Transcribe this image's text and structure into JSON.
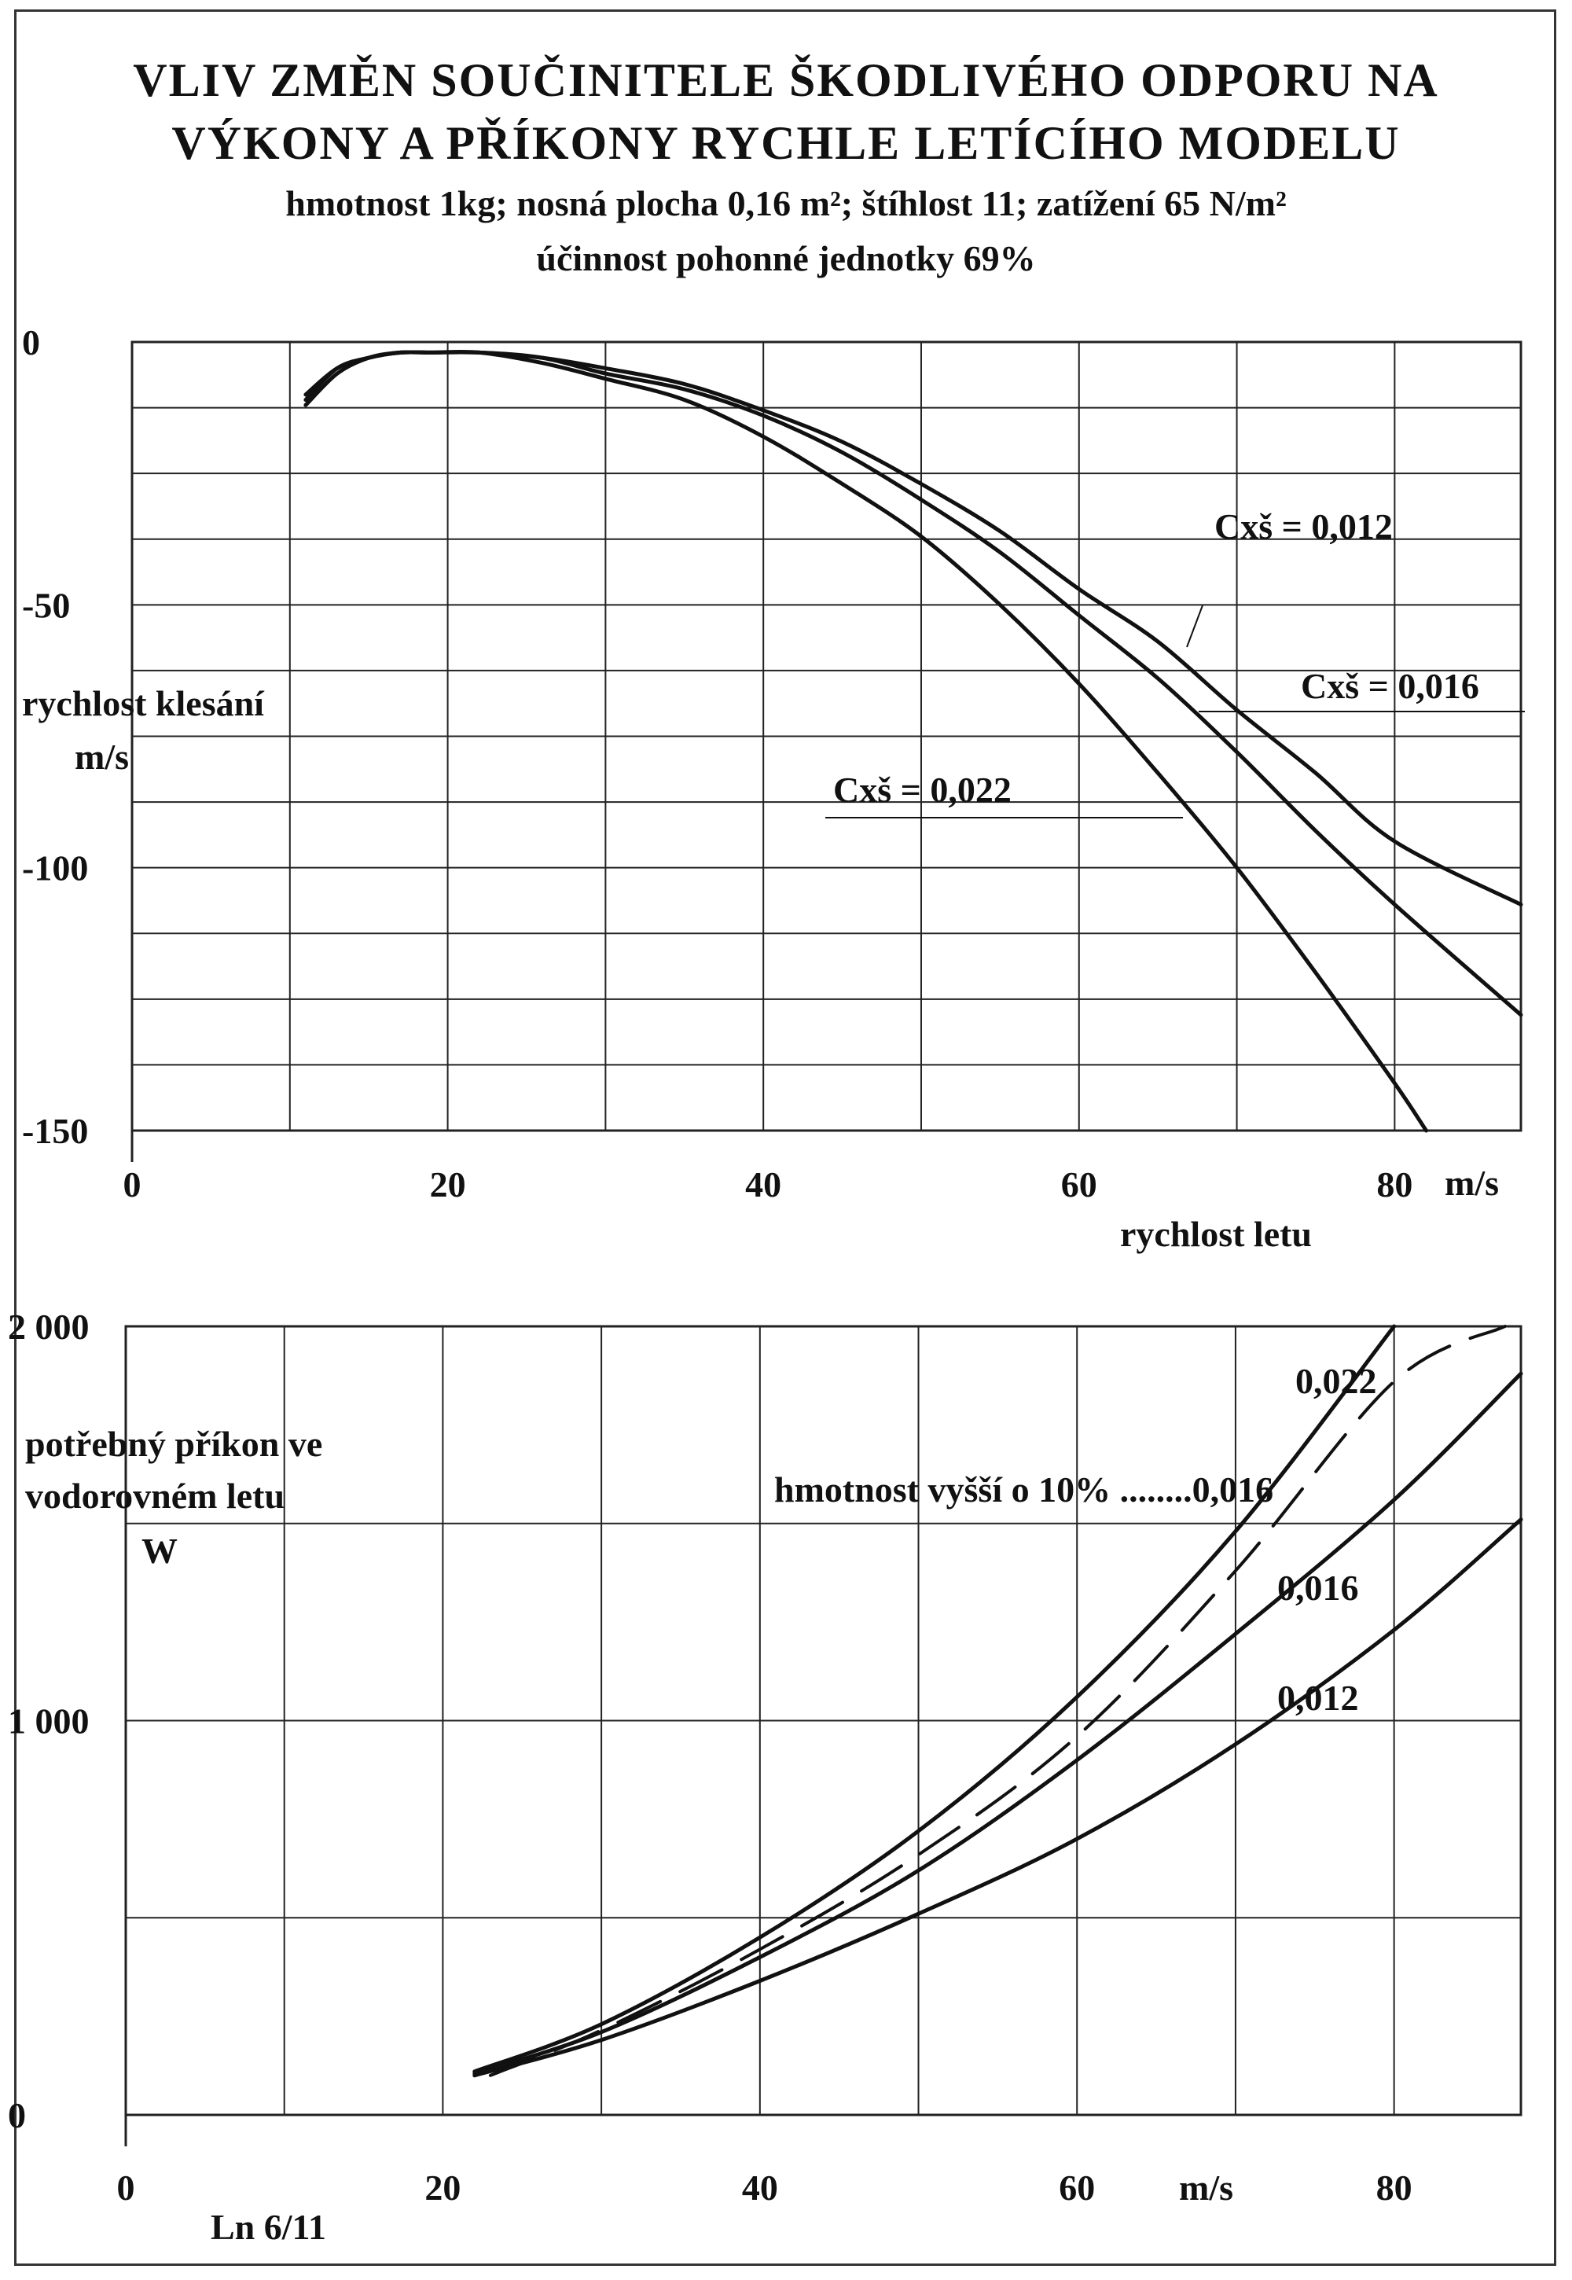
{
  "title": {
    "line1": "VLIV ZMĚN SOUČINITELE ŠKODLIVÉHO ODPORU NA",
    "line2": "VÝKONY A PŘÍKONY RYCHLE LETÍCÍHO MODELU",
    "subtitle1": "hmotnost 1kg; nosná plocha 0,16 m²; štíhlost 11; zatížení 65 N/m²",
    "subtitle2": "účinnost pohonné jednotky 69%"
  },
  "footer_code": "Ln 6/11",
  "colors": {
    "ink": "#111111",
    "grid": "#222222",
    "background": "#ffffff"
  },
  "chart_data": [
    {
      "type": "line",
      "title": "",
      "xlabel": "rychlost letu",
      "xunit": "m/s",
      "ylabel": [
        "rychlost klesání",
        "m/s"
      ],
      "xlim": [
        0,
        88
      ],
      "ylim": [
        -150,
        0
      ],
      "xticks": [
        0,
        20,
        40,
        60,
        80
      ],
      "yticks": [
        0,
        -50,
        -100,
        -150
      ],
      "grid": true,
      "series": [
        {
          "name": "Cxš = 0,012",
          "x": [
            11,
            13,
            15,
            17,
            19,
            22,
            26,
            30,
            35,
            40,
            45,
            50,
            55,
            60,
            65,
            70,
            75,
            80,
            88
          ],
          "y": [
            -10,
            -5,
            -3,
            -2,
            -2,
            -2,
            -3,
            -5,
            -8,
            -13,
            -19,
            -27,
            -36,
            -47,
            -57,
            -70,
            -82,
            -95,
            -107
          ]
        },
        {
          "name": "Cxš = 0,016",
          "x": [
            11,
            13,
            15,
            17,
            19,
            22,
            26,
            30,
            35,
            40,
            45,
            50,
            55,
            60,
            65,
            70,
            75,
            80,
            88
          ],
          "y": [
            -11,
            -5,
            -3,
            -2,
            -2,
            -2,
            -3,
            -6,
            -9,
            -14,
            -21,
            -30,
            -40,
            -52,
            -64,
            -78,
            -93,
            -107,
            -128
          ]
        },
        {
          "name": "Cxš = 0,022",
          "x": [
            11,
            13,
            15,
            17,
            19,
            22,
            26,
            30,
            35,
            40,
            45,
            50,
            55,
            60,
            65,
            70,
            75,
            80,
            82
          ],
          "y": [
            -12,
            -6,
            -3,
            -2,
            -2,
            -2,
            -4,
            -7,
            -11,
            -18,
            -27,
            -37,
            -50,
            -65,
            -82,
            -100,
            -120,
            -141,
            -150
          ]
        }
      ],
      "annotations": [
        {
          "text": "Cxš = 0,012",
          "series": 0
        },
        {
          "text": "Cxš = 0,016",
          "series": 1
        },
        {
          "text": "Cxš = 0,022",
          "series": 2
        }
      ]
    },
    {
      "type": "line",
      "title": "",
      "xlabel": "m/s",
      "ylabel": [
        "potřebný příkon ve",
        "vodorovném letu",
        "W"
      ],
      "xlim": [
        0,
        88
      ],
      "ylim": [
        0,
        2000
      ],
      "xticks": [
        0,
        20,
        40,
        60,
        80
      ],
      "yticks": [
        0,
        1000,
        2000
      ],
      "ytick_labels": [
        "0",
        "1 000",
        "2 000"
      ],
      "grid": true,
      "series": [
        {
          "name": "0,012",
          "x": [
            22,
            30,
            40,
            50,
            60,
            70,
            80,
            88
          ],
          "y": [
            100,
            190,
            340,
            510,
            700,
            940,
            1230,
            1510
          ]
        },
        {
          "name": "0,016",
          "x": [
            22,
            30,
            40,
            50,
            60,
            70,
            80,
            88
          ],
          "y": [
            105,
            210,
            400,
            620,
            900,
            1220,
            1560,
            1880
          ]
        },
        {
          "name": "0,022",
          "x": [
            22,
            30,
            40,
            50,
            60,
            70,
            80
          ],
          "y": [
            110,
            230,
            450,
            720,
            1060,
            1480,
            2000
          ]
        },
        {
          "name": "0,016",
          "x": [
            23,
            30,
            40,
            50,
            60,
            70,
            80,
            87
          ],
          "y": [
            100,
            215,
            420,
            660,
            960,
            1380,
            1860,
            2000
          ],
          "dashed": true
        }
      ],
      "annotations": [
        {
          "text": "0,022",
          "series": 2
        },
        {
          "text": "hmotnost vyšší o 10% ........0,016",
          "series": 3
        },
        {
          "text": "0,016",
          "series": 1
        },
        {
          "text": "0,012",
          "series": 0
        }
      ]
    }
  ]
}
